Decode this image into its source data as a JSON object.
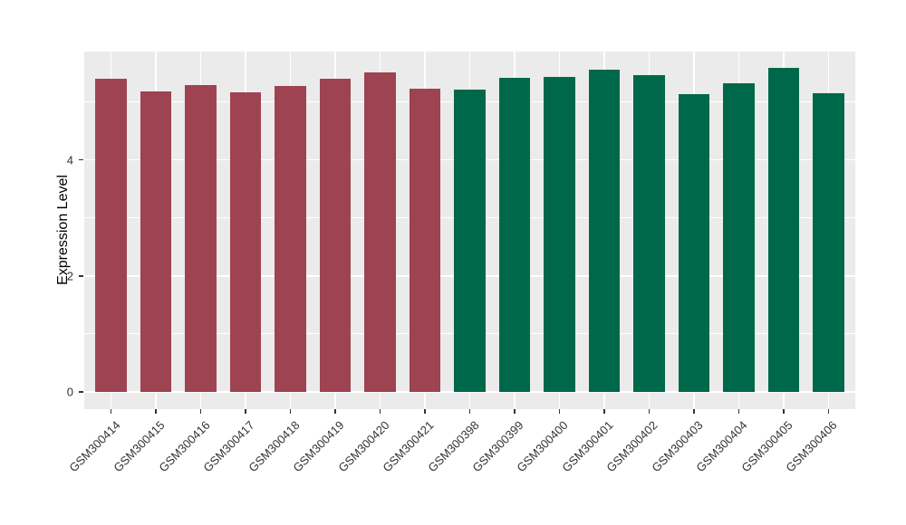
{
  "chart_data": {
    "type": "bar",
    "title": "",
    "xlabel": "",
    "ylabel": "Expression Level",
    "ylim": [
      -0.3,
      5.87
    ],
    "yticks": [
      0,
      2,
      4
    ],
    "yticks_minor": [
      1,
      3,
      5
    ],
    "grid": true,
    "legend": false,
    "bar_width_ratio": 0.7,
    "categories": [
      "GSM300414",
      "GSM300415",
      "GSM300416",
      "GSM300417",
      "GSM300418",
      "GSM300419",
      "GSM300420",
      "GSM300421",
      "GSM300398",
      "GSM300399",
      "GSM300400",
      "GSM300401",
      "GSM300402",
      "GSM300403",
      "GSM300404",
      "GSM300405",
      "GSM300406"
    ],
    "values": [
      5.4,
      5.18,
      5.29,
      5.17,
      5.27,
      5.4,
      5.51,
      5.23,
      5.22,
      5.42,
      5.44,
      5.55,
      5.47,
      5.14,
      5.33,
      5.59,
      5.15
    ],
    "groups": [
      "group1",
      "group1",
      "group1",
      "group1",
      "group1",
      "group1",
      "group1",
      "group1",
      "group2",
      "group2",
      "group2",
      "group2",
      "group2",
      "group2",
      "group2",
      "group2",
      "group2"
    ],
    "colors": {
      "group1": "#9E4351",
      "group2": "#00684A",
      "panel_background": "#EBEBEB",
      "gridline": "#FFFFFF",
      "axis_text": "#333333",
      "axis_title": "#000000",
      "tick_mark": "#333333"
    }
  }
}
